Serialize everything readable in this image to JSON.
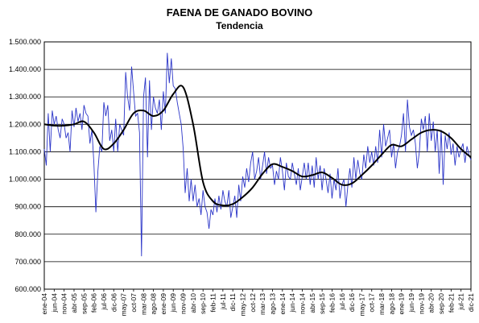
{
  "chart_data": {
    "type": "line",
    "title": "FAENA DE GANADO BOVINO",
    "subtitle": "Tendencia",
    "xlabel": "",
    "ylabel": "",
    "ylim": [
      600000,
      1500000
    ],
    "y_ticks": [
      "600.000",
      "700.000",
      "800.000",
      "900.000",
      "1.000.000",
      "1.100.000",
      "1.200.000",
      "1.300.000",
      "1.400.000",
      "1.500.000"
    ],
    "x_ticks": [
      "ene-04",
      "jun-04",
      "nov-04",
      "abr-05",
      "sep-05",
      "feb-06",
      "jul-06",
      "dic-06",
      "may-07",
      "oct-07",
      "mar-08",
      "ago-08",
      "ene-09",
      "jun-09",
      "nov-09",
      "abr-10",
      "sep-10",
      "feb-11",
      "jul-11",
      "dic-11",
      "may-12",
      "oct-12",
      "mar-13",
      "ago-13",
      "ene-14",
      "jun-14",
      "nov-14",
      "abr-15",
      "sep-15",
      "feb-16",
      "jul-16",
      "dic-16",
      "may-17",
      "oct-17",
      "mar-18",
      "ago-18",
      "ene-19",
      "jun-19",
      "nov-19",
      "abr-20",
      "sep-20",
      "feb-21",
      "jul-21",
      "dic-21"
    ],
    "grid": "horizontal",
    "series": [
      {
        "role": "monthly",
        "color": "#2b35c8",
        "anchors": [
          [
            "ene-04",
            1110000
          ],
          [
            "feb-04",
            1050000
          ],
          [
            "mar-04",
            1240000
          ],
          [
            "abr-04",
            1100000
          ],
          [
            "may-04",
            1250000
          ],
          [
            "jun-04",
            1200000
          ],
          [
            "jul-04",
            1230000
          ],
          [
            "ago-04",
            1180000
          ],
          [
            "sep-04",
            1150000
          ],
          [
            "oct-04",
            1220000
          ],
          [
            "nov-04",
            1200000
          ],
          [
            "dic-04",
            1150000
          ],
          [
            "ene-05",
            1170000
          ],
          [
            "feb-05",
            1100000
          ],
          [
            "mar-05",
            1250000
          ],
          [
            "abr-05",
            1190000
          ],
          [
            "may-05",
            1260000
          ],
          [
            "jun-05",
            1210000
          ],
          [
            "jul-05",
            1240000
          ],
          [
            "ago-05",
            1180000
          ],
          [
            "sep-05",
            1270000
          ],
          [
            "oct-05",
            1240000
          ],
          [
            "nov-05",
            1230000
          ],
          [
            "dic-05",
            1130000
          ],
          [
            "ene-06",
            1180000
          ],
          [
            "feb-06",
            1060000
          ],
          [
            "mar-06",
            880000
          ],
          [
            "abr-06",
            1030000
          ],
          [
            "may-06",
            1120000
          ],
          [
            "jun-06",
            1100000
          ],
          [
            "jul-06",
            1280000
          ],
          [
            "ago-06",
            1230000
          ],
          [
            "sep-06",
            1270000
          ],
          [
            "oct-06",
            1140000
          ],
          [
            "nov-06",
            1180000
          ],
          [
            "dic-06",
            1100000
          ],
          [
            "ene-07",
            1220000
          ],
          [
            "feb-07",
            1100000
          ],
          [
            "mar-07",
            1200000
          ],
          [
            "abr-07",
            1180000
          ],
          [
            "may-07",
            1160000
          ],
          [
            "jun-07",
            1390000
          ],
          [
            "jul-07",
            1300000
          ],
          [
            "ago-07",
            1250000
          ],
          [
            "sep-07",
            1410000
          ],
          [
            "oct-07",
            1320000
          ],
          [
            "nov-07",
            1230000
          ],
          [
            "dic-07",
            1240000
          ],
          [
            "ene-08",
            1170000
          ],
          [
            "feb-08",
            720000
          ],
          [
            "mar-08",
            1300000
          ],
          [
            "abr-08",
            1370000
          ],
          [
            "may-08",
            1080000
          ],
          [
            "jun-08",
            1360000
          ],
          [
            "jul-08",
            1180000
          ],
          [
            "ago-08",
            1300000
          ],
          [
            "sep-08",
            1260000
          ],
          [
            "oct-08",
            1240000
          ],
          [
            "nov-08",
            1290000
          ],
          [
            "dic-08",
            1180000
          ],
          [
            "ene-09",
            1320000
          ],
          [
            "feb-09",
            1240000
          ],
          [
            "mar-09",
            1460000
          ],
          [
            "abr-09",
            1350000
          ],
          [
            "may-09",
            1440000
          ],
          [
            "jun-09",
            1340000
          ],
          [
            "jul-09",
            1330000
          ],
          [
            "ago-09",
            1280000
          ],
          [
            "sep-09",
            1240000
          ],
          [
            "oct-09",
            1200000
          ],
          [
            "nov-09",
            1110000
          ],
          [
            "dic-09",
            950000
          ],
          [
            "ene-10",
            1040000
          ],
          [
            "feb-10",
            920000
          ],
          [
            "mar-10",
            1000000
          ],
          [
            "abr-10",
            920000
          ],
          [
            "may-10",
            980000
          ],
          [
            "jun-10",
            900000
          ],
          [
            "jul-10",
            930000
          ],
          [
            "ago-10",
            870000
          ],
          [
            "sep-10",
            960000
          ],
          [
            "oct-10",
            900000
          ],
          [
            "nov-10",
            880000
          ],
          [
            "dic-10",
            820000
          ],
          [
            "ene-11",
            890000
          ],
          [
            "feb-11",
            870000
          ],
          [
            "mar-11",
            930000
          ],
          [
            "abr-11",
            880000
          ],
          [
            "may-11",
            940000
          ],
          [
            "jun-11",
            890000
          ],
          [
            "jul-11",
            960000
          ],
          [
            "ago-11",
            920000
          ],
          [
            "sep-11",
            900000
          ],
          [
            "oct-11",
            960000
          ],
          [
            "nov-11",
            860000
          ],
          [
            "dic-11",
            900000
          ],
          [
            "ene-12",
            940000
          ],
          [
            "feb-12",
            860000
          ],
          [
            "mar-12",
            980000
          ],
          [
            "abr-12",
            920000
          ],
          [
            "may-12",
            1010000
          ],
          [
            "jun-12",
            970000
          ],
          [
            "jul-12",
            1040000
          ],
          [
            "ago-12",
            990000
          ],
          [
            "sep-12",
            1060000
          ],
          [
            "oct-12",
            1100000
          ],
          [
            "nov-12",
            1000000
          ],
          [
            "dic-12",
            1030000
          ],
          [
            "ene-13",
            1080000
          ],
          [
            "feb-13",
            1000000
          ],
          [
            "mar-13",
            1050000
          ],
          [
            "abr-13",
            1100000
          ],
          [
            "may-13",
            1020000
          ],
          [
            "jun-13",
            1080000
          ],
          [
            "jul-13",
            1040000
          ],
          [
            "ago-13",
            1050000
          ],
          [
            "sep-13",
            980000
          ],
          [
            "oct-13",
            1030000
          ],
          [
            "nov-13",
            1000000
          ],
          [
            "dic-13",
            1080000
          ],
          [
            "ene-14",
            1030000
          ],
          [
            "feb-14",
            960000
          ],
          [
            "mar-14",
            1060000
          ],
          [
            "abr-14",
            1010000
          ],
          [
            "may-14",
            1000000
          ],
          [
            "jun-14",
            1060000
          ],
          [
            "jul-14",
            1020000
          ],
          [
            "ago-14",
            980000
          ],
          [
            "sep-14",
            1040000
          ],
          [
            "oct-14",
            960000
          ],
          [
            "nov-14",
            1010000
          ],
          [
            "dic-14",
            1060000
          ],
          [
            "ene-15",
            1000000
          ],
          [
            "feb-15",
            1060000
          ],
          [
            "mar-15",
            980000
          ],
          [
            "abr-15",
            1050000
          ],
          [
            "may-15",
            970000
          ],
          [
            "jun-15",
            1080000
          ],
          [
            "jul-15",
            1000000
          ],
          [
            "ago-15",
            1050000
          ],
          [
            "sep-15",
            960000
          ],
          [
            "oct-15",
            1040000
          ],
          [
            "nov-15",
            1000000
          ],
          [
            "dic-15",
            950000
          ],
          [
            "ene-16",
            1020000
          ],
          [
            "feb-16",
            930000
          ],
          [
            "mar-16",
            1000000
          ],
          [
            "abr-16",
            960000
          ],
          [
            "may-16",
            1040000
          ],
          [
            "jun-16",
            930000
          ],
          [
            "jul-16",
            980000
          ],
          [
            "ago-16",
            1000000
          ],
          [
            "sep-16",
            900000
          ],
          [
            "oct-16",
            980000
          ],
          [
            "nov-16",
            1040000
          ],
          [
            "dic-16",
            970000
          ],
          [
            "ene-17",
            1080000
          ],
          [
            "feb-17",
            1000000
          ],
          [
            "mar-17",
            1070000
          ],
          [
            "abr-17",
            1020000
          ],
          [
            "may-17",
            1000000
          ],
          [
            "jun-17",
            1090000
          ],
          [
            "jul-17",
            1040000
          ],
          [
            "ago-17",
            1120000
          ],
          [
            "sep-17",
            1060000
          ],
          [
            "oct-17",
            1100000
          ],
          [
            "nov-17",
            1050000
          ],
          [
            "dic-17",
            1120000
          ],
          [
            "ene-18",
            1060000
          ],
          [
            "feb-18",
            1180000
          ],
          [
            "mar-18",
            1080000
          ],
          [
            "abr-18",
            1200000
          ],
          [
            "may-18",
            1120000
          ],
          [
            "jun-18",
            1150000
          ],
          [
            "jul-18",
            1180000
          ],
          [
            "ago-18",
            1080000
          ],
          [
            "sep-18",
            1130000
          ],
          [
            "oct-18",
            1040000
          ],
          [
            "nov-18",
            1100000
          ],
          [
            "dic-18",
            1120000
          ],
          [
            "ene-19",
            1160000
          ],
          [
            "feb-19",
            1240000
          ],
          [
            "mar-19",
            1100000
          ],
          [
            "abr-19",
            1290000
          ],
          [
            "may-19",
            1190000
          ],
          [
            "jun-19",
            1160000
          ],
          [
            "jul-19",
            1180000
          ],
          [
            "ago-19",
            1130000
          ],
          [
            "sep-19",
            1040000
          ],
          [
            "oct-19",
            1100000
          ],
          [
            "nov-19",
            1220000
          ],
          [
            "dic-19",
            1180000
          ],
          [
            "ene-20",
            1230000
          ],
          [
            "feb-20",
            1100000
          ],
          [
            "mar-20",
            1240000
          ],
          [
            "abr-20",
            1140000
          ],
          [
            "may-20",
            1210000
          ],
          [
            "jun-20",
            1100000
          ],
          [
            "jul-20",
            1180000
          ],
          [
            "ago-20",
            1020000
          ],
          [
            "sep-20",
            1180000
          ],
          [
            "oct-20",
            980000
          ],
          [
            "nov-20",
            1160000
          ],
          [
            "dic-20",
            1110000
          ],
          [
            "ene-21",
            1170000
          ],
          [
            "feb-21",
            1090000
          ],
          [
            "mar-21",
            1130000
          ],
          [
            "abr-21",
            1050000
          ],
          [
            "may-21",
            1120000
          ],
          [
            "jun-21",
            1080000
          ],
          [
            "jul-21",
            1110000
          ],
          [
            "ago-21",
            1130000
          ],
          [
            "sep-21",
            1060000
          ],
          [
            "oct-21",
            1120000
          ],
          [
            "nov-21",
            1090000
          ],
          [
            "dic-21",
            1070000
          ]
        ]
      },
      {
        "role": "trend",
        "color": "#000000",
        "anchors": [
          [
            "ene-04",
            1200000
          ],
          [
            "jun-04",
            1195000
          ],
          [
            "nov-04",
            1195000
          ],
          [
            "abr-05",
            1200000
          ],
          [
            "sep-05",
            1210000
          ],
          [
            "feb-06",
            1170000
          ],
          [
            "jul-06",
            1110000
          ],
          [
            "dic-06",
            1130000
          ],
          [
            "may-07",
            1180000
          ],
          [
            "oct-07",
            1240000
          ],
          [
            "mar-08",
            1250000
          ],
          [
            "ago-08",
            1230000
          ],
          [
            "ene-09",
            1250000
          ],
          [
            "jun-09",
            1310000
          ],
          [
            "nov-09",
            1335000
          ],
          [
            "abr-10",
            1200000
          ],
          [
            "sep-10",
            990000
          ],
          [
            "feb-11",
            920000
          ],
          [
            "jul-11",
            905000
          ],
          [
            "dic-11",
            910000
          ],
          [
            "may-12",
            935000
          ],
          [
            "oct-12",
            970000
          ],
          [
            "mar-13",
            1020000
          ],
          [
            "ago-13",
            1055000
          ],
          [
            "ene-14",
            1045000
          ],
          [
            "jun-14",
            1030000
          ],
          [
            "nov-14",
            1010000
          ],
          [
            "abr-15",
            1015000
          ],
          [
            "sep-15",
            1025000
          ],
          [
            "feb-16",
            1005000
          ],
          [
            "jul-16",
            980000
          ],
          [
            "dic-16",
            985000
          ],
          [
            "may-17",
            1015000
          ],
          [
            "oct-17",
            1050000
          ],
          [
            "mar-18",
            1090000
          ],
          [
            "ago-18",
            1125000
          ],
          [
            "ene-19",
            1120000
          ],
          [
            "jun-19",
            1145000
          ],
          [
            "nov-19",
            1170000
          ],
          [
            "abr-20",
            1180000
          ],
          [
            "sep-20",
            1175000
          ],
          [
            "feb-21",
            1150000
          ],
          [
            "jul-21",
            1110000
          ],
          [
            "dic-21",
            1080000
          ]
        ]
      }
    ]
  }
}
